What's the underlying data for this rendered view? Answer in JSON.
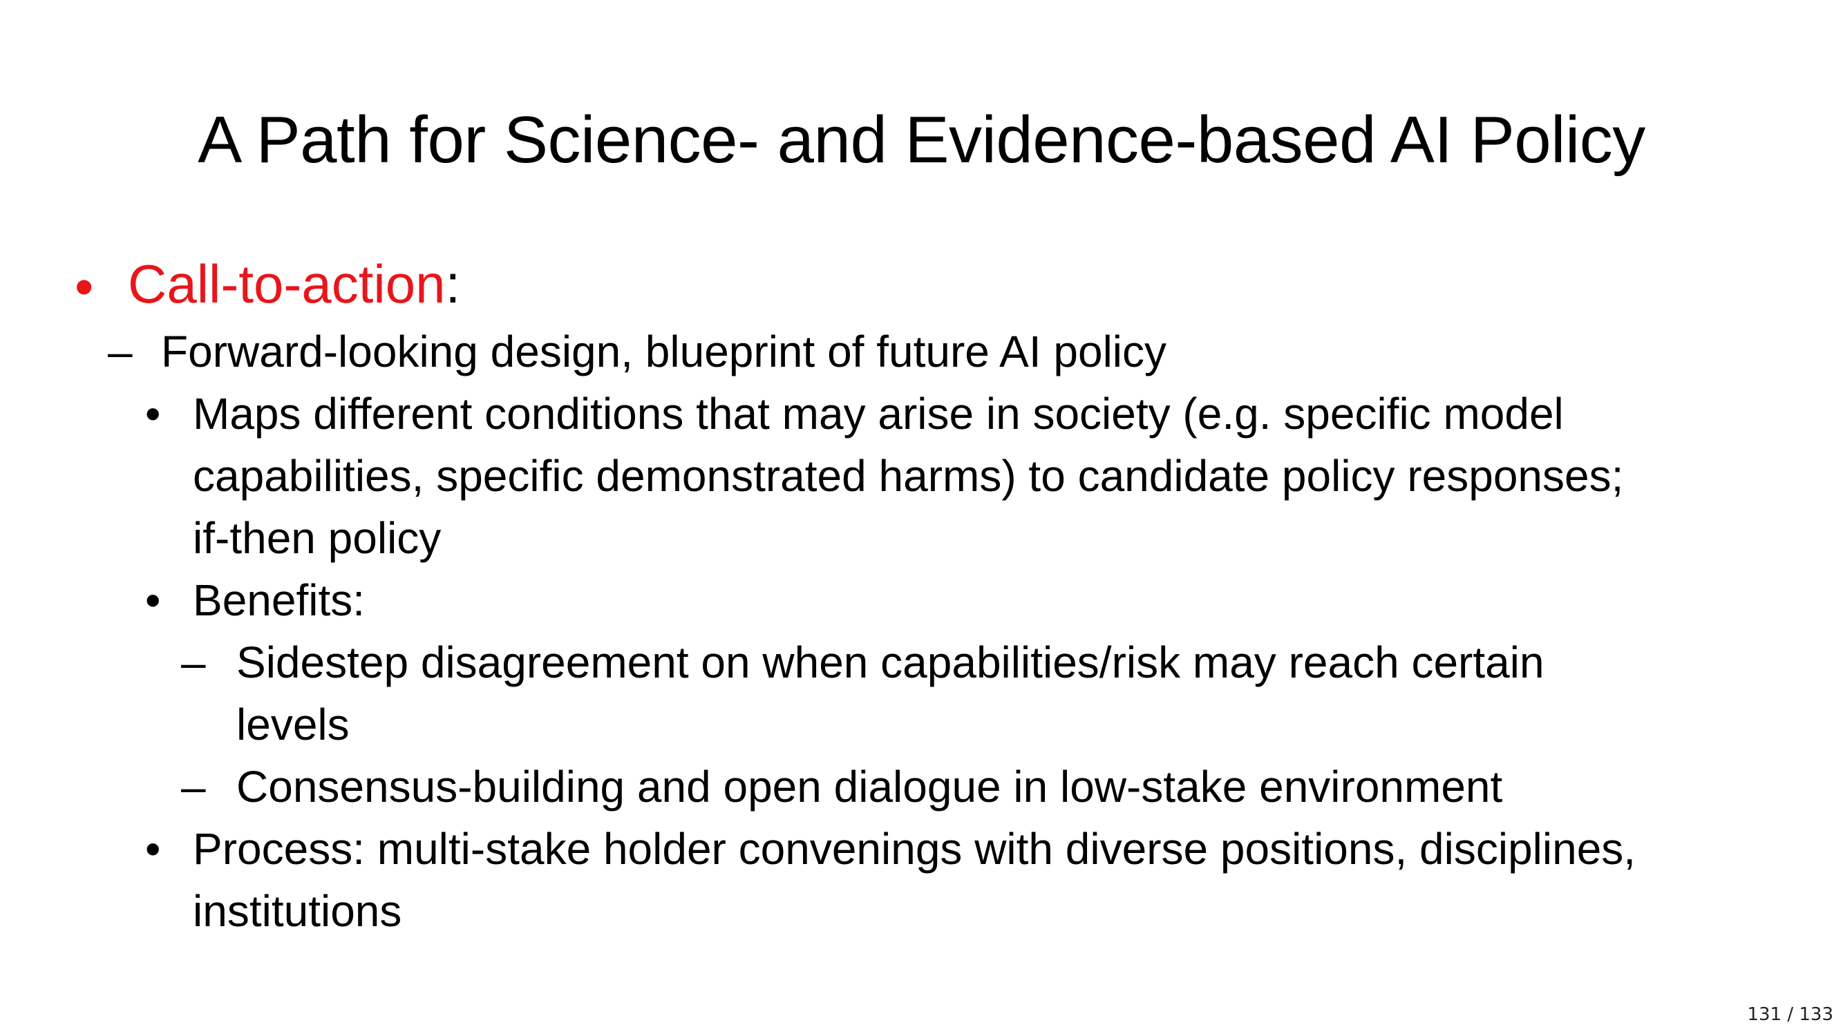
{
  "slide": {
    "title": "A Path for Science- and Evidence-based AI Policy",
    "bullets": {
      "b1": {
        "marker": "•",
        "label": "Call-to-action",
        "suffix": ":"
      },
      "b2": {
        "marker": "–",
        "text": "Forward-looking design, blueprint of future AI policy"
      },
      "b3": {
        "marker": "•",
        "lines": [
          "Maps different conditions that may arise in society (e.g. specific model",
          "capabilities, specific demonstrated harms) to candidate policy responses;",
          "if-then policy"
        ]
      },
      "b4": {
        "marker": "•",
        "text": "Benefits:"
      },
      "b5": {
        "marker": "–",
        "lines": [
          "Sidestep disagreement on when capabilities/risk may reach certain",
          "levels"
        ]
      },
      "b6": {
        "marker": "–",
        "text": "Consensus-building and open dialogue in low-stake environment"
      },
      "b7": {
        "marker": "•",
        "lines": [
          "Process: multi-stake holder convenings with diverse positions, disciplines,",
          "institutions"
        ]
      }
    },
    "accent_color": "#e8151b"
  },
  "footer": {
    "page_indicator": "131 / 133"
  }
}
